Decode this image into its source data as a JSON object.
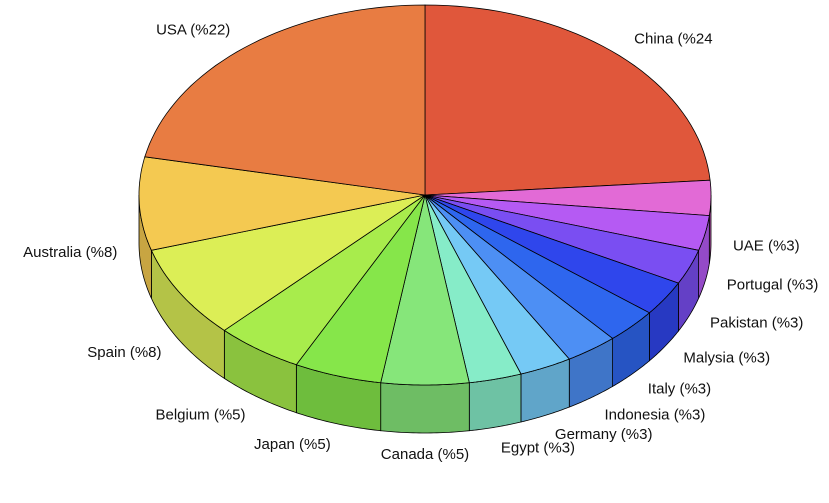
{
  "chart_data": {
    "type": "pie",
    "categories": [
      "China (%24",
      "UAE (%3)",
      "Portugal (%3)",
      "Pakistan (%3)",
      "Malysia (%3)",
      "Italy (%3)",
      "Indonesia (%3)",
      "Germany (%3)",
      "Egypt (%3)",
      "Canada (%5)",
      "Japan (%5)",
      "Belgium (%5)",
      "Spain (%8)",
      "Australia (%8)",
      "USA (%22)"
    ],
    "values": [
      24,
      3,
      3,
      3,
      3,
      3,
      3,
      3,
      3,
      5,
      5,
      5,
      8,
      8,
      22
    ],
    "colors": [
      "#e0573b",
      "#e063c9",
      "#e26ad6",
      "#b55af3",
      "#7a4ef2",
      "#2f46ec",
      "#2e66ee",
      "#4d8ff4",
      "#75c9f5",
      "#86ecc8",
      "#86e67a",
      "#86e64a",
      "#a8ec4c",
      "#dcee56",
      "#f4c951",
      "#e87c42"
    ]
  }
}
